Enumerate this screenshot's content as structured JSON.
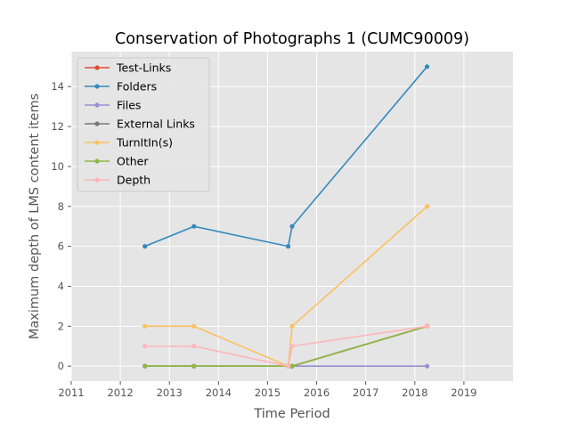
{
  "chart_data": {
    "type": "line",
    "title": "Conservation of Photographs 1 (CUMC90009)",
    "xlabel": "Time Period",
    "ylabel": "Maximum depth of LMS content items",
    "xlim": [
      2011,
      2020
    ],
    "ylim": [
      -0.75,
      15.75
    ],
    "xticks": [
      2011,
      2012,
      2013,
      2014,
      2015,
      2016,
      2017,
      2018,
      2019
    ],
    "yticks": [
      0,
      2,
      4,
      6,
      8,
      10,
      12,
      14
    ],
    "grid": true,
    "legend_position": "upper-left",
    "x": [
      2012.5,
      2013.5,
      2015.42,
      2015.5,
      2018.25
    ],
    "series": [
      {
        "name": "Test-Links",
        "color": "#E24A33",
        "values": [
          0,
          0,
          0,
          0,
          2
        ]
      },
      {
        "name": "Folders",
        "color": "#348ABD",
        "values": [
          6,
          7,
          6,
          7,
          15
        ]
      },
      {
        "name": "Files",
        "color": "#988ED5",
        "values": [
          0,
          0,
          0,
          0,
          0
        ]
      },
      {
        "name": "External Links",
        "color": "#777777",
        "values": [
          0,
          0,
          0,
          0,
          2
        ]
      },
      {
        "name": "TurnItIn(s)",
        "color": "#FBC15E",
        "values": [
          2,
          2,
          0,
          2,
          8
        ]
      },
      {
        "name": "Other",
        "color": "#8EBA42",
        "values": [
          0,
          0,
          0,
          0,
          2
        ]
      },
      {
        "name": "Depth",
        "color": "#FFB5B8",
        "values": [
          1,
          1,
          0,
          1,
          2
        ]
      }
    ]
  }
}
